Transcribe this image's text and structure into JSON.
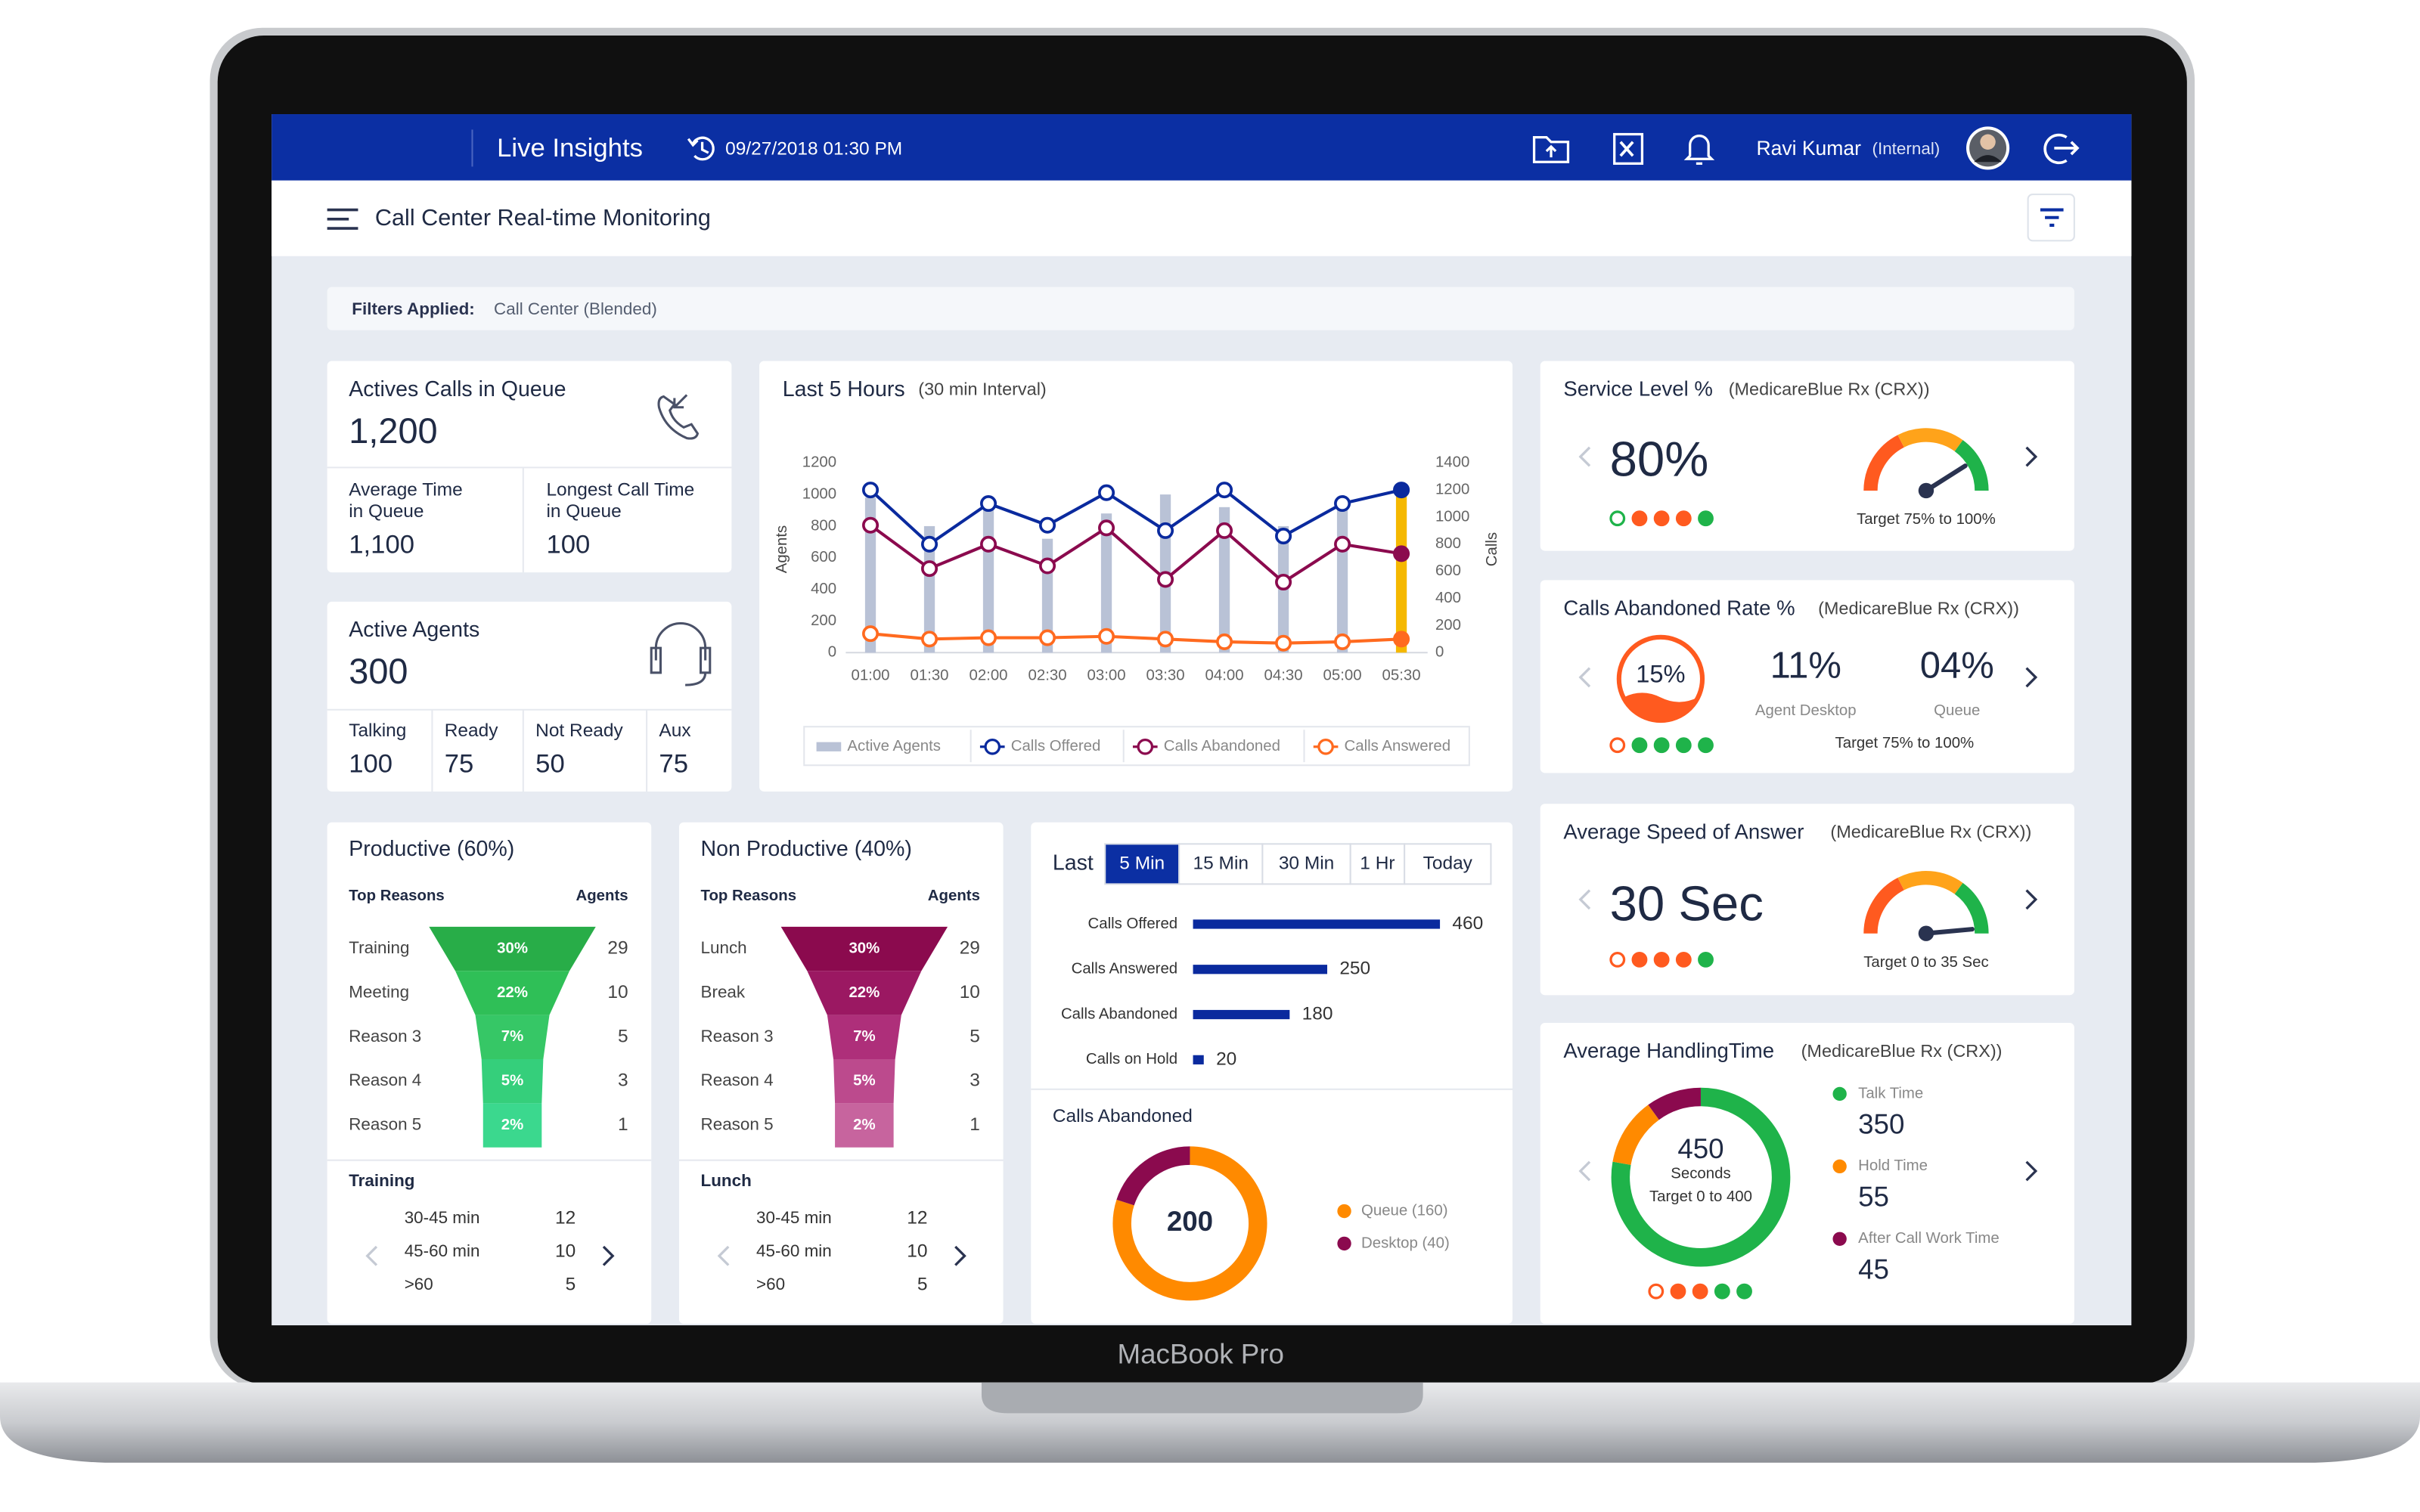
{
  "device_label": "MacBook Pro",
  "header": {
    "app_name": "Live Insights",
    "datetime": "09/27/2018 01:30 PM",
    "user_name": "Ravi Kumar",
    "user_role": "(Internal)"
  },
  "toolbar": {
    "title": "Call Center Real-time Monitoring"
  },
  "filters": {
    "label": "Filters Applied:",
    "value": "Call Center (Blended)"
  },
  "calls_in_queue": {
    "title": "Actives Calls in Queue",
    "value": "1,200",
    "stats": [
      {
        "label": [
          "Average Time",
          "in Queue"
        ],
        "value": "1,100"
      },
      {
        "label": [
          "Longest Call Time",
          "in Queue"
        ],
        "value": "100"
      }
    ]
  },
  "active_agents": {
    "title": "Active Agents",
    "value": "300",
    "stats": [
      {
        "label": "Talking",
        "value": "100"
      },
      {
        "label": "Ready",
        "value": "75"
      },
      {
        "label": "Not Ready",
        "value": "50"
      },
      {
        "label": "Aux",
        "value": "75"
      }
    ]
  },
  "chart_data": [
    {
      "type": "combo",
      "title": "Last 5 Hours",
      "subtitle": "(30 min Interval)",
      "y_label": "Agents",
      "y2_label": "Calls",
      "categories": [
        "01:00",
        "01:30",
        "02:00",
        "02:30",
        "03:00",
        "03:30",
        "04:00",
        "04:30",
        "05:00",
        "05:30"
      ],
      "ylim": [
        0,
        1200
      ],
      "yticks": [
        0,
        200,
        400,
        600,
        800,
        1000,
        1200
      ],
      "y2lim": [
        0,
        1400
      ],
      "y2ticks": [
        0,
        200,
        400,
        600,
        800,
        1000,
        1200,
        1400
      ],
      "grid": false,
      "series": [
        {
          "name": "Active Agents",
          "type": "bar",
          "color": "#b9c2d6",
          "colors": [
            "#b9c2d6",
            "#b9c2d6",
            "#b9c2d6",
            "#b9c2d6",
            "#b9c2d6",
            "#b9c2d6",
            "#b9c2d6",
            "#b9c2d6",
            "#b9c2d6",
            "#f5b800"
          ],
          "values": [
            980,
            800,
            960,
            720,
            880,
            1000,
            920,
            800,
            920,
            1020
          ]
        },
        {
          "name": "Calls Offered",
          "type": "line",
          "axis": "y2",
          "color": "#0a2a9e",
          "values": [
            1200,
            800,
            1100,
            940,
            1180,
            900,
            1200,
            860,
            1100,
            1200
          ]
        },
        {
          "name": "Calls Abandoned",
          "type": "line",
          "axis": "y2",
          "color": "#8b0a4e",
          "values": [
            940,
            620,
            800,
            640,
            920,
            540,
            900,
            520,
            800,
            730
          ]
        },
        {
          "name": "Calls Answered",
          "type": "line",
          "axis": "y2",
          "color": "#ff6a1f",
          "values": [
            140,
            100,
            110,
            110,
            120,
            100,
            80,
            70,
            80,
            100
          ]
        }
      ]
    },
    {
      "type": "bar",
      "orientation": "horizontal",
      "label": "Last",
      "tabs": [
        "5 Min",
        "15 Min",
        "30 Min",
        "1 Hr",
        "Today"
      ],
      "active_tab": 0,
      "categories": [
        "Calls Offered",
        "Calls Answered",
        "Calls Abandoned",
        "Calls on Hold"
      ],
      "values": [
        460,
        250,
        180,
        20
      ],
      "color": "#0a2a9e"
    }
  ],
  "calls_abandoned": {
    "title": "Calls Abandoned",
    "total": 200,
    "segments": [
      {
        "label": "Queue (160)",
        "value": 160,
        "color": "#ff8a00"
      },
      {
        "label": "Desktop (40)",
        "value": 40,
        "color": "#8b0a4e"
      }
    ]
  },
  "productive": {
    "title": "Productive (60%)",
    "col_reason": "Top Reasons",
    "col_agents": "Agents",
    "rows": [
      {
        "reason": "Training",
        "share": "30%",
        "agents": 29
      },
      {
        "reason": "Meeting",
        "share": "22%",
        "agents": 10
      },
      {
        "reason": "Reason 3",
        "share": "7%",
        "agents": 5
      },
      {
        "reason": "Reason 4",
        "share": "5%",
        "agents": 3
      },
      {
        "reason": "Reason 5",
        "share": "2%",
        "agents": 1
      }
    ],
    "detail": {
      "title": "Training",
      "rows": [
        {
          "range": "30-45 min",
          "agents": 12
        },
        {
          "range": "45-60 min",
          "agents": 10
        },
        {
          "range": ">60",
          "agents": 5
        }
      ]
    }
  },
  "non_productive": {
    "title": "Non Productive (40%)",
    "col_reason": "Top Reasons",
    "col_agents": "Agents",
    "rows": [
      {
        "reason": "Lunch",
        "share": "30%",
        "agents": 29
      },
      {
        "reason": "Break",
        "share": "22%",
        "agents": 10
      },
      {
        "reason": "Reason 3",
        "share": "7%",
        "agents": 5
      },
      {
        "reason": "Reason 4",
        "share": "5%",
        "agents": 3
      },
      {
        "reason": "Reason 5",
        "share": "2%",
        "agents": 1
      }
    ],
    "detail": {
      "title": "Lunch",
      "rows": [
        {
          "range": "30-45 min",
          "agents": 12
        },
        {
          "range": "45-60 min",
          "agents": 10
        },
        {
          "range": ">60",
          "agents": 5
        }
      ]
    }
  },
  "service_level": {
    "title": "Service Level %",
    "context": "(MedicareBlue Rx (CRX))",
    "value": "80%",
    "target": "Target 75% to 100%"
  },
  "abandon_rate": {
    "title": "Calls Abandoned Rate %",
    "context": "(MedicareBlue Rx (CRX))",
    "value": "15%",
    "parts": [
      {
        "value": "11%",
        "label": "Agent Desktop"
      },
      {
        "value": "04%",
        "label": "Queue"
      }
    ],
    "target": "Target 75% to 100%"
  },
  "speed_of_answer": {
    "title": "Average Speed of Answer",
    "context": "(MedicareBlue Rx (CRX))",
    "value": "30 Sec",
    "target": "Target 0 to 35 Sec"
  },
  "handling_time": {
    "title": "Average HandlingTime",
    "context": "(MedicareBlue Rx (CRX))",
    "value": 450,
    "unit": "Seconds",
    "target": "Target 0 to 400",
    "items": [
      {
        "label": "Talk Time",
        "value": 350,
        "color": "#1fb34a"
      },
      {
        "label": "Hold Time",
        "value": 55,
        "color": "#ff8a00"
      },
      {
        "label": "After Call Work Time",
        "value": 45,
        "color": "#8b0a4e"
      }
    ]
  }
}
